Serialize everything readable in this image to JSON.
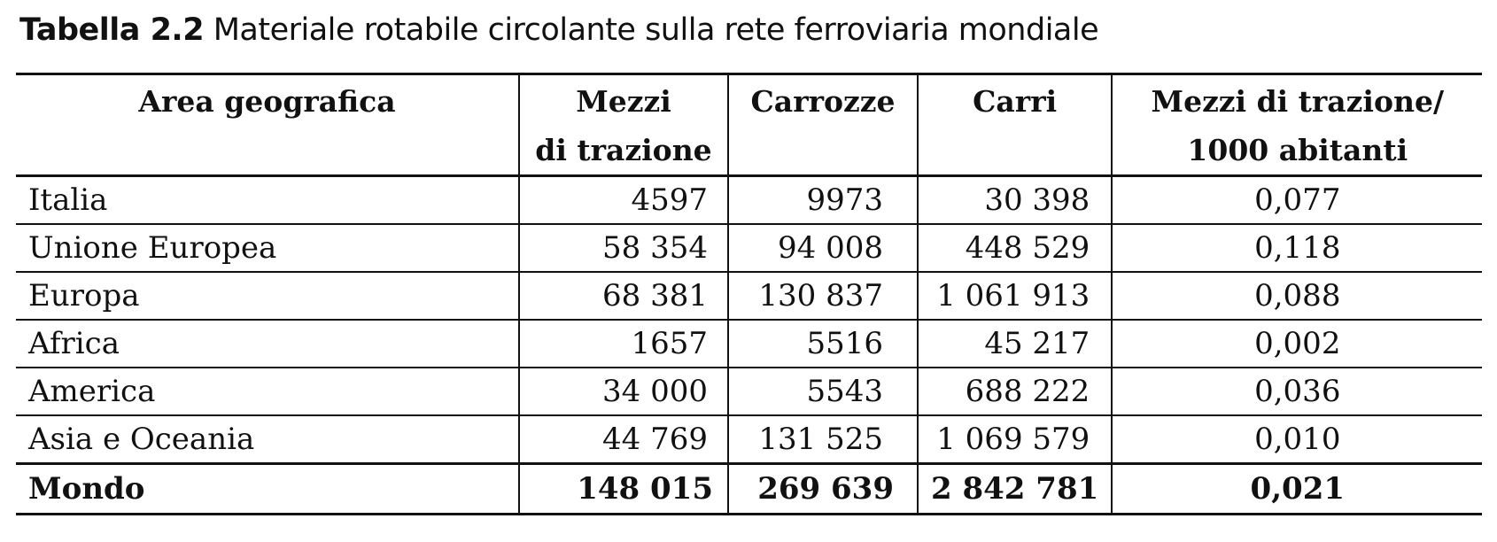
{
  "caption": {
    "label": "Tabella 2.2",
    "text": "Materiale rotabile circolante sulla rete ferroviaria mondiale"
  },
  "table": {
    "headers": [
      {
        "line1": "Area geografica",
        "line2": ""
      },
      {
        "line1": "Mezzi",
        "line2": "di trazione"
      },
      {
        "line1": "Carrozze",
        "line2": ""
      },
      {
        "line1": "Carri",
        "line2": ""
      },
      {
        "line1": "Mezzi di trazione/",
        "line2": "1000 abitanti"
      }
    ],
    "rows": [
      [
        "Italia",
        "4597",
        "9973",
        "30 398",
        "0,077"
      ],
      [
        "Unione Europea",
        "58 354",
        "94 008",
        "448 529",
        "0,118"
      ],
      [
        "Europa",
        "68 381",
        "130 837",
        "1 061 913",
        "0,088"
      ],
      [
        "Africa",
        "1657",
        "5516",
        "45 217",
        "0,002"
      ],
      [
        "America",
        "34 000",
        "5543",
        "688 222",
        "0,036"
      ],
      [
        "Asia e Oceania",
        "44 769",
        "131 525",
        "1 069 579",
        "0,010"
      ],
      [
        "Mondo",
        "148 015",
        "269 639",
        "2 842 781",
        "0,021"
      ]
    ]
  }
}
